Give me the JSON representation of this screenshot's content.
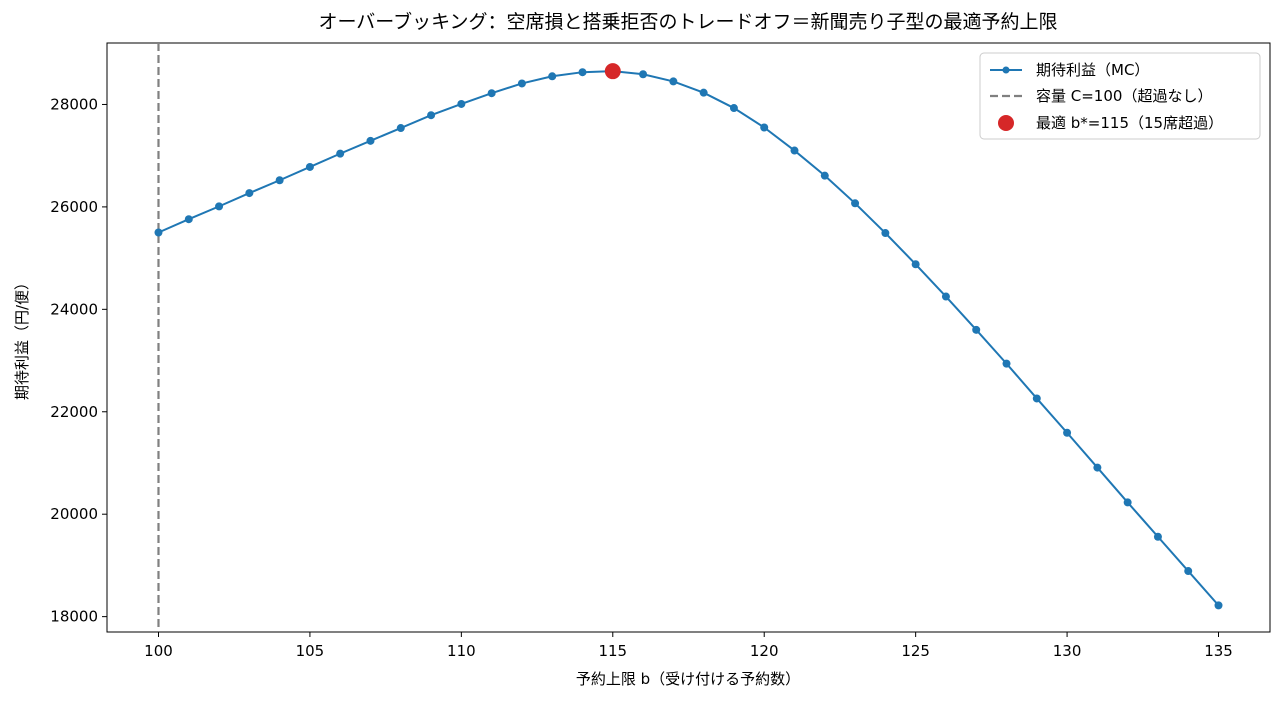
{
  "chart_data": {
    "type": "line",
    "title": "オーバーブッキング：空席損と搭乗拒否のトレードオフ＝新聞売り子型の最適予約上限",
    "xlabel": "予約上限 b（受け付ける予約数）",
    "ylabel": "期待利益（円/便）",
    "xlim": [
      98.3,
      136.7
    ],
    "ylim": [
      17700,
      29200
    ],
    "xticks": [
      100,
      105,
      110,
      115,
      120,
      125,
      130,
      135
    ],
    "yticks": [
      18000,
      20000,
      22000,
      24000,
      26000,
      28000
    ],
    "grid": false,
    "legend_position": "top-right",
    "series": [
      {
        "name": "期待利益（MC）",
        "color": "#1f77b4",
        "x": [
          100,
          101,
          102,
          103,
          104,
          105,
          106,
          107,
          108,
          109,
          110,
          111,
          112,
          113,
          114,
          115,
          116,
          117,
          118,
          119,
          120,
          121,
          122,
          123,
          124,
          125,
          126,
          127,
          128,
          129,
          130,
          131,
          132,
          133,
          134,
          135
        ],
        "y": [
          25500,
          25760,
          26010,
          26270,
          26520,
          26780,
          27040,
          27290,
          27540,
          27790,
          28010,
          28220,
          28410,
          28550,
          28630,
          28650,
          28590,
          28450,
          28230,
          27930,
          27550,
          27100,
          26610,
          26070,
          25490,
          24880,
          24250,
          23600,
          22940,
          22260,
          21590,
          20910,
          20230,
          19560,
          18890,
          18220
        ]
      }
    ],
    "reference_line": {
      "name": "容量 C=100（超過なし）",
      "x": 100,
      "color": "#808080"
    },
    "highlight": {
      "name": "最適 b*=115（15席超過）",
      "x": 115,
      "y": 28650,
      "color": "#d62728"
    }
  }
}
